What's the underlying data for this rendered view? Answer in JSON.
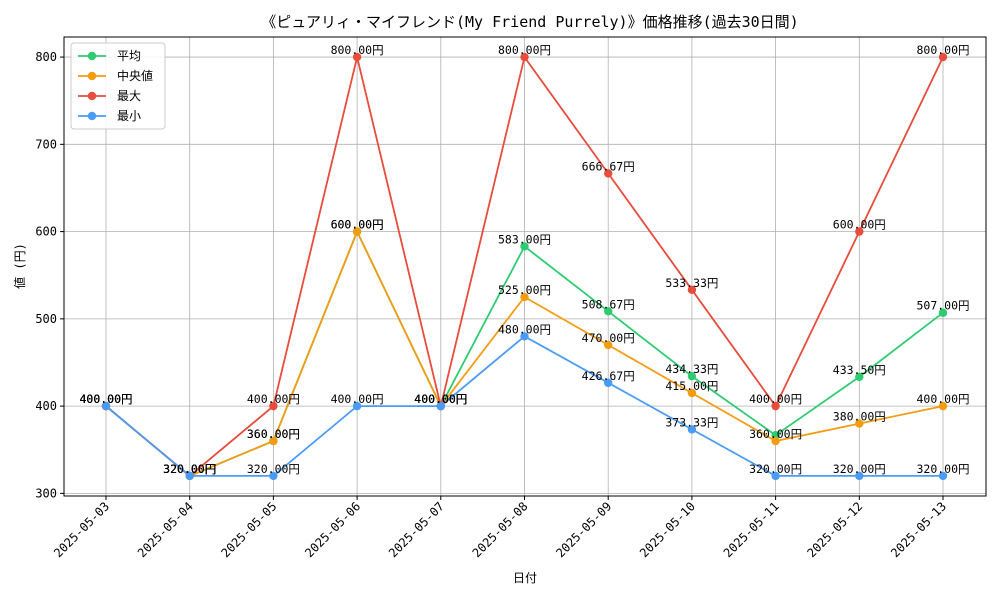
{
  "chart_data": {
    "type": "line",
    "title": "《ピュアリィ・マイフレンド(My Friend Purrely)》価格推移(過去30日間)",
    "xlabel": "日付",
    "ylabel": "値 (円)",
    "ylim": [
      297,
      823
    ],
    "yticks": [
      300,
      400,
      500,
      600,
      700,
      800
    ],
    "grid": true,
    "legend_position": "top-left",
    "categories": [
      "2025-05-03",
      "2025-05-04",
      "2025-05-05",
      "2025-05-06",
      "2025-05-07",
      "2025-05-08",
      "2025-05-09",
      "2025-05-10",
      "2025-05-11",
      "2025-05-12",
      "2025-05-13"
    ],
    "label_suffix": "円",
    "series": [
      {
        "name": "平均",
        "color": "#2ecc71",
        "values": [
          400.0,
          320.0,
          360.0,
          600.0,
          400.0,
          583.0,
          508.67,
          434.33,
          366.67,
          433.5,
          507.0
        ],
        "labels": [
          "400.00円",
          "320.00円",
          "360.00円",
          "600.00円",
          "400.00円",
          "583.00円",
          "508.67円",
          "434.33円",
          "",
          "433.50円",
          "507.00円"
        ]
      },
      {
        "name": "中央値",
        "color": "#f39c12",
        "values": [
          400.0,
          320.0,
          360.0,
          600.0,
          400.0,
          525.0,
          470.0,
          415.0,
          360.0,
          380.0,
          400.0
        ],
        "labels": [
          "400.00円",
          "320.00円",
          "360.00円",
          "600.00円",
          "400.00円",
          "525.00円",
          "470.00円",
          "415.00円",
          "360.00円",
          "380.00円",
          "400.00円"
        ]
      },
      {
        "name": "最大",
        "color": "#e74c3c",
        "values": [
          400.0,
          320.0,
          400.0,
          800.0,
          400.0,
          800.0,
          666.67,
          533.33,
          400.0,
          600.0,
          800.0
        ],
        "labels": [
          "400.00円",
          "320.00円",
          "400.00円",
          "800.00円",
          "400.00円",
          "800.00円",
          "666.67円",
          "533.33円",
          "400.00円",
          "600.00円",
          "800.00円"
        ]
      },
      {
        "name": "最小",
        "color": "#4a9bf5",
        "values": [
          400.0,
          320.0,
          320.0,
          400.0,
          400.0,
          480.0,
          426.67,
          373.33,
          320.0,
          320.0,
          320.0
        ],
        "labels": [
          "400.00円",
          "320.00円",
          "320.00円",
          "400.00円",
          "400.00円",
          "480.00円",
          "426.67円",
          "373.33円",
          "320.00円",
          "320.00円",
          "320.00円"
        ]
      }
    ]
  }
}
